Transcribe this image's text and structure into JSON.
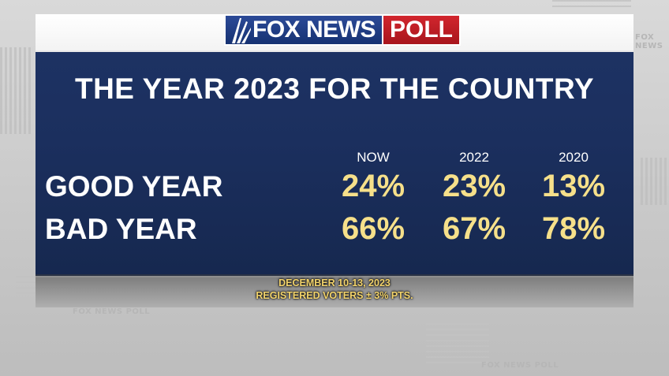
{
  "logo": {
    "fox_news": "FOX NEWS",
    "poll": "POLL"
  },
  "title": "THE YEAR 2023 FOR THE COUNTRY",
  "columns": [
    "NOW",
    "2022",
    "2020"
  ],
  "rows": [
    {
      "label": "GOOD YEAR",
      "values": [
        "24%",
        "23%",
        "13%"
      ]
    },
    {
      "label": "BAD YEAR",
      "values": [
        "66%",
        "67%",
        "78%"
      ]
    }
  ],
  "footer": {
    "dates": "DECEMBER 10-13, 2023",
    "sample": "REGISTERED VOTERS ± 3% PTS."
  },
  "colors": {
    "panel": "#1b2f5e",
    "values": "#f6e08a",
    "footer": "#f2d36b",
    "poll_red": "#c01f27",
    "fox_blue": "#1f3d87"
  }
}
